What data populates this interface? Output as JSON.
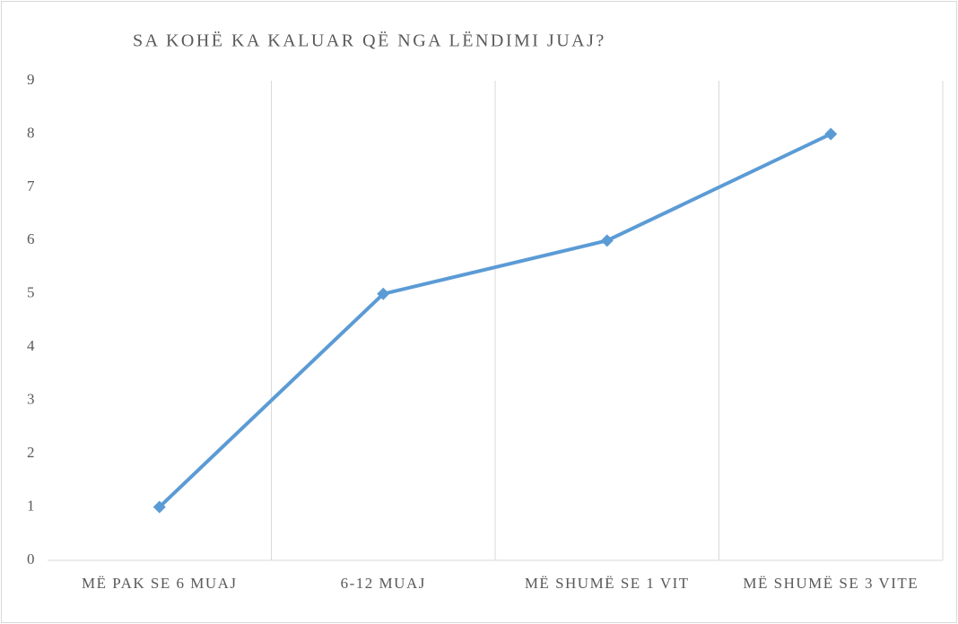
{
  "chart_data": {
    "type": "line",
    "title": "SA KOHË KA KALUAR QË NGA LËNDIMI JUAJ?",
    "categories": [
      "MË PAK SE 6 MUAJ",
      "6-12 MUAJ",
      "MË SHUMË SE 1 VIT",
      "MË SHUMË SE 3 VITE"
    ],
    "values": [
      1,
      5,
      6,
      8
    ],
    "color": "#5b9bd5",
    "ylim": [
      0,
      9
    ],
    "yticks": [
      0,
      1,
      2,
      3,
      4,
      5,
      6,
      7,
      8,
      9
    ],
    "grid": "vertical",
    "marker": "diamond"
  }
}
